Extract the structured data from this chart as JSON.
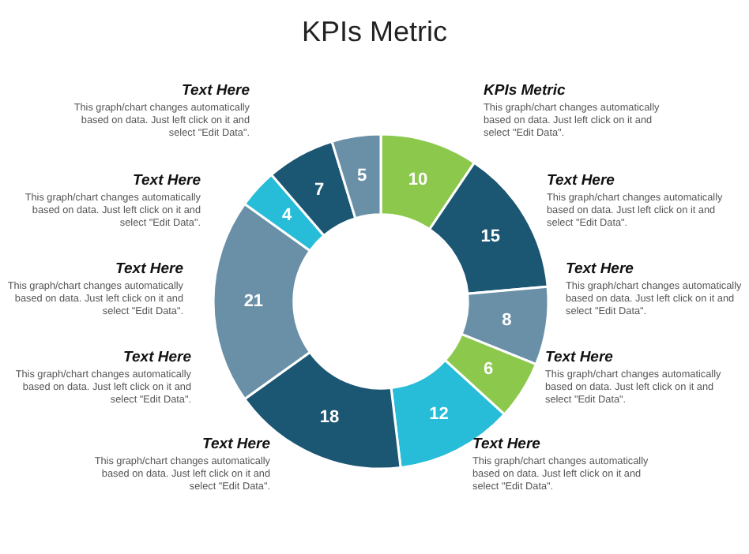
{
  "chart_data": {
    "type": "donut",
    "title": "KPIs Metric",
    "categories": [
      null,
      null,
      null,
      null,
      null,
      null,
      null,
      null,
      null,
      null
    ],
    "values": [
      10,
      15,
      8,
      6,
      12,
      18,
      21,
      4,
      7,
      5
    ],
    "colors": [
      "#8cc84b",
      "#1b5673",
      "#6a90a8",
      "#8cc84b",
      "#27bcd8",
      "#1b5673",
      "#6a90a8",
      "#27bcd8",
      "#1b5673",
      "#6a90a8"
    ],
    "data_labels": true,
    "legend": false,
    "annotations": [
      "Text Here",
      "This graph/chart changes automatically based on data. Just left click on it and select \"Edit Data\".",
      "KPIs Metric",
      "This graph/chart changes automatically based on data. Just left click on it and select \"Edit Data\".",
      "Text Here",
      "This graph/chart changes automatically based on data. Just left click on it and select \"Edit Data\".",
      "Text Here",
      "This graph/chart changes automatically based on data. Just left click on it and select \"Edit Data\".",
      "Text Here",
      "This graph/chart changes automatically based on data. Just left click on it and select \"Edit Data\".",
      "Text Here",
      "This graph/chart changes automatically based on data. Just left click on it and select \"Edit Data\".",
      "Text Here",
      "This graph/chart changes automatically based on data. Just left click on it and select \"Edit Data\".",
      "Text Here",
      "This graph/chart changes automatically based on data. Just left click on it and select \"Edit Data\".",
      "Text Here",
      "This graph/chart changes automatically based on data. Just left click on it and select \"Edit Data\".",
      "Text Here",
      "This graph/chart changes automatically based on data. Just left click on it and select \"Edit Data\"."
    ]
  }
}
